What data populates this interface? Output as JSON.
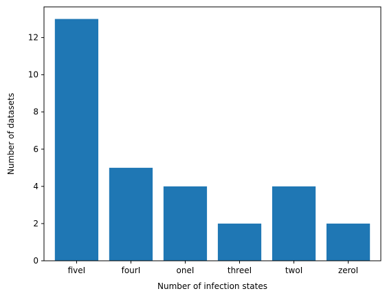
{
  "chart_data": {
    "type": "bar",
    "categories": [
      "fiveI",
      "fourI",
      "oneI",
      "threeI",
      "twoI",
      "zeroI"
    ],
    "values": [
      13,
      5,
      4,
      2,
      4,
      2
    ],
    "title": "",
    "xlabel": "Number of infection states",
    "ylabel": "Number of datasets",
    "ylim": [
      0,
      13.65
    ],
    "yticks": [
      0,
      2,
      4,
      6,
      8,
      10,
      12
    ],
    "grid": false,
    "colors": {
      "bar": "#1f77b4",
      "axis": "#000000",
      "background": "#ffffff"
    }
  }
}
